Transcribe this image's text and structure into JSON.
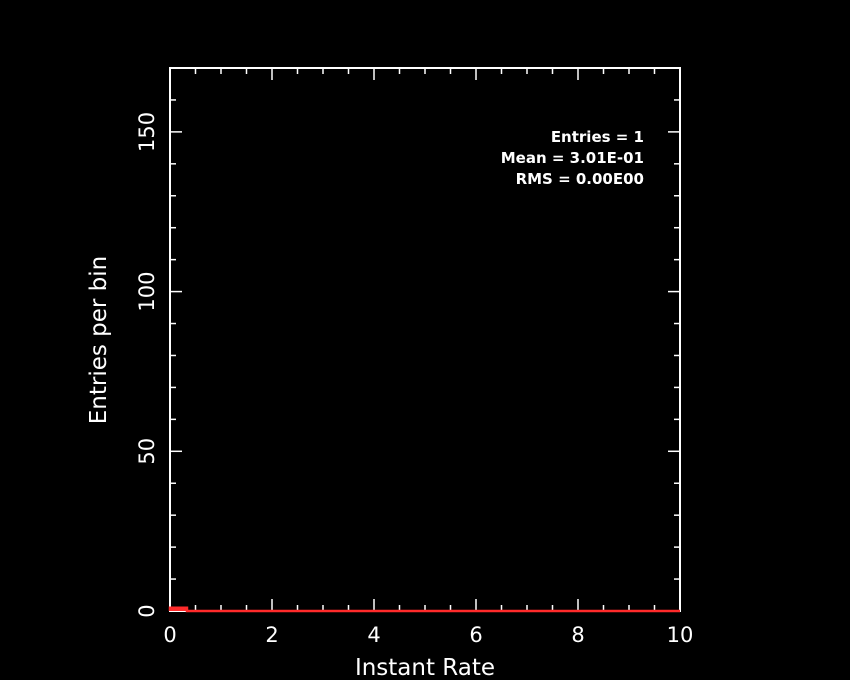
{
  "chart_data": {
    "type": "bar",
    "xlabel": "Instant Rate",
    "ylabel": "Entries per bin",
    "xlim": [
      0,
      10
    ],
    "ylim": [
      0,
      170
    ],
    "x_ticks": [
      "0",
      "2",
      "4",
      "6",
      "8",
      "10"
    ],
    "y_ticks": [
      "0",
      "50",
      "100",
      "150"
    ],
    "bin_width": 0.333,
    "series": [
      {
        "color": "#ff2a2a",
        "bins": [
          {
            "x0": 0.0,
            "x1": 0.333,
            "value": 1
          }
        ]
      }
    ],
    "stats": {
      "entries": "Entries = 1",
      "mean": "Mean = 3.01E-01",
      "rms": "RMS = 0.00E00"
    },
    "legend": "top-right",
    "grid": false,
    "background": "#000000",
    "axis_color": "#ffffff"
  }
}
